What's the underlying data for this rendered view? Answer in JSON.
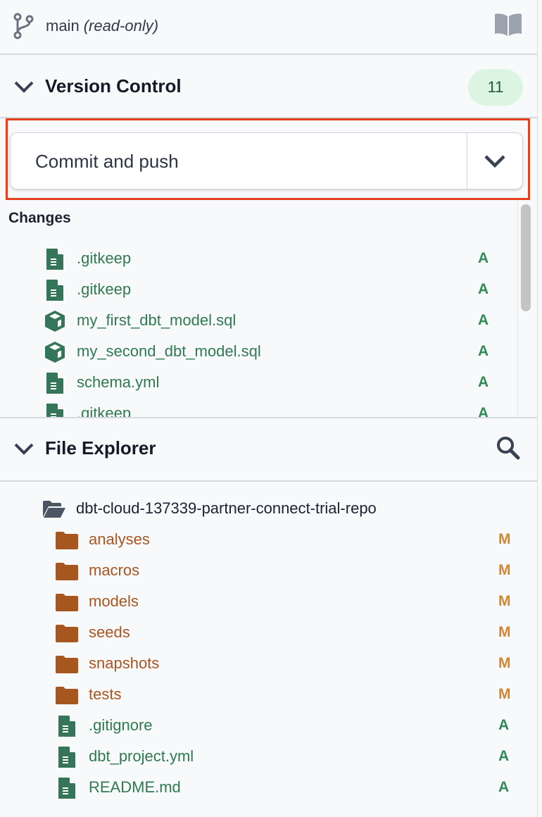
{
  "branch": {
    "name": "main",
    "mode": "(read-only)"
  },
  "version_control": {
    "title": "Version Control",
    "count": "11",
    "commit_button": "Commit and push",
    "changes_label": "Changes",
    "changes": [
      {
        "name": ".gitkeep",
        "icon": "file-icon",
        "status": "A"
      },
      {
        "name": ".gitkeep",
        "icon": "file-icon",
        "status": "A"
      },
      {
        "name": "my_first_dbt_model.sql",
        "icon": "model-cube-icon",
        "status": "A"
      },
      {
        "name": "my_second_dbt_model.sql",
        "icon": "model-cube-icon",
        "status": "A"
      },
      {
        "name": "schema.yml",
        "icon": "file-icon",
        "status": "A"
      },
      {
        "name": ".gitkeep",
        "icon": "file-icon",
        "status": "A"
      }
    ]
  },
  "file_explorer": {
    "title": "File Explorer",
    "root": "dbt-cloud-137339-partner-connect-trial-repo",
    "items": [
      {
        "name": "analyses",
        "type": "folder",
        "status": "M"
      },
      {
        "name": "macros",
        "type": "folder",
        "status": "M"
      },
      {
        "name": "models",
        "type": "folder",
        "status": "M"
      },
      {
        "name": "seeds",
        "type": "folder",
        "status": "M"
      },
      {
        "name": "snapshots",
        "type": "folder",
        "status": "M"
      },
      {
        "name": "tests",
        "type": "folder",
        "status": "M"
      },
      {
        "name": ".gitignore",
        "type": "file",
        "status": "A"
      },
      {
        "name": "dbt_project.yml",
        "type": "file",
        "status": "A"
      },
      {
        "name": "README.md",
        "type": "file",
        "status": "A"
      }
    ]
  },
  "colors": {
    "added": "#2f8a55",
    "modified": "#d3862c",
    "highlight": "#e5401c",
    "badge_bg": "#dcf5e3"
  }
}
